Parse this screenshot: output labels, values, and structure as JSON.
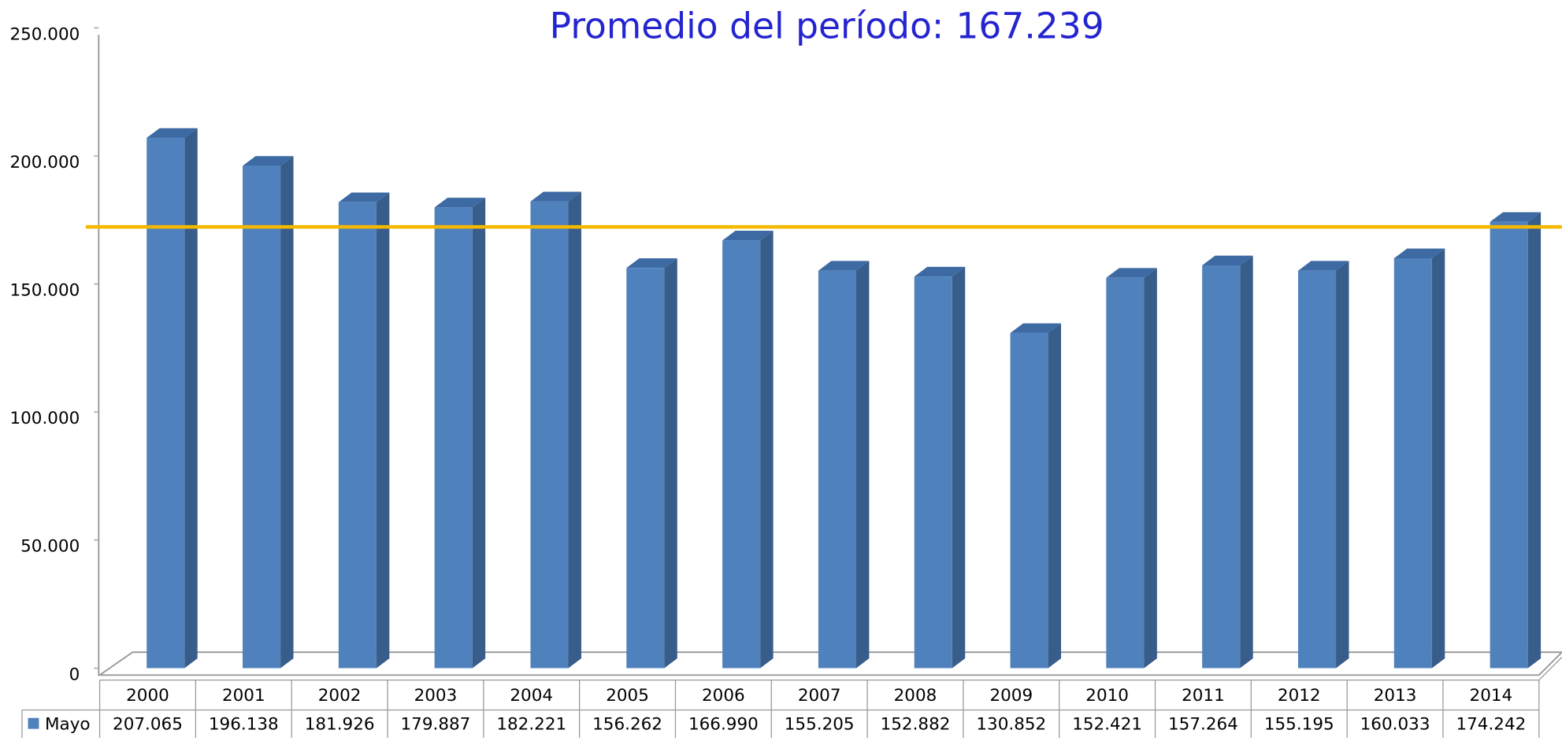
{
  "chart_data": {
    "type": "bar3d",
    "title": "Promedio del período:",
    "average_line": {
      "value": 167239,
      "label": "167.239",
      "color": "#f5b800"
    },
    "categories": [
      "2000",
      "2001",
      "2002",
      "2003",
      "2004",
      "2005",
      "2006",
      "2007",
      "2008",
      "2009",
      "2010",
      "2011",
      "2012",
      "2013",
      "2014"
    ],
    "series": [
      {
        "name": "Mayo",
        "color": "#4f81bd",
        "values": [
          207065,
          196138,
          181926,
          179887,
          182221,
          156262,
          166990,
          155205,
          152882,
          130852,
          152421,
          157264,
          155195,
          160033,
          174242
        ],
        "value_labels": [
          "207.065",
          "196.138",
          "181.926",
          "179.887",
          "182.221",
          "156.262",
          "166.990",
          "155.205",
          "152.882",
          "130.852",
          "152.421",
          "157.264",
          "155.195",
          "160.033",
          "174.242"
        ]
      }
    ],
    "ylim": [
      0,
      250000
    ],
    "yticks": [
      0,
      {
        "value": 50000,
        "label": "50.000"
      },
      {
        "value": 100000,
        "label": "100.000"
      },
      {
        "value": 150000,
        "label": "150.000"
      },
      {
        "value": 200000,
        "label": "200.000"
      },
      {
        "value": 250000,
        "label": "250.000"
      }
    ],
    "grid": false
  }
}
